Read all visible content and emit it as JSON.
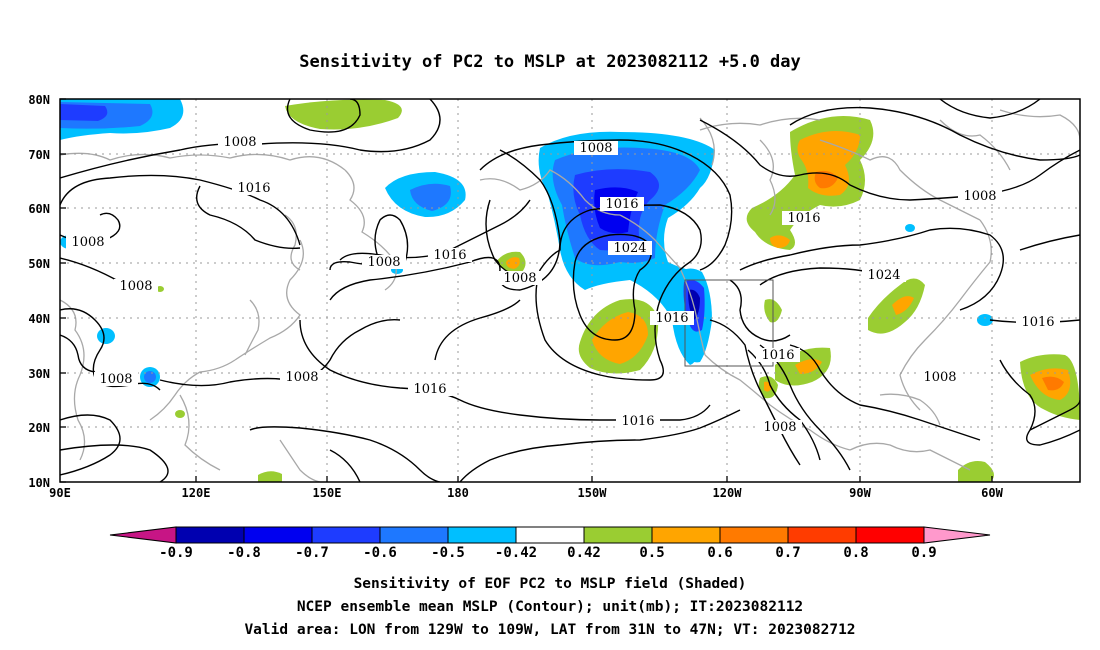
{
  "title": "Sensitivity of PC2 to MSLP at 2023082112 +5.0 day",
  "lat_labels": [
    "80N",
    "70N",
    "60N",
    "50N",
    "40N",
    "30N",
    "20N",
    "10N"
  ],
  "lon_labels": [
    "90E",
    "120E",
    "150E",
    "180",
    "150W",
    "120W",
    "90W",
    "60W"
  ],
  "colorbar": {
    "ticks": [
      "-0.9",
      "-0.8",
      "-0.7",
      "-0.6",
      "-0.5",
      "-0.42",
      "0.42",
      "0.5",
      "0.6",
      "0.7",
      "0.8",
      "0.9"
    ],
    "colors": [
      "#c71585",
      "#0000b0",
      "#0000f0",
      "#1e3cff",
      "#1e78ff",
      "#00bfff",
      "#ffffff",
      "#9acd32",
      "#ffa500",
      "#ff7a00",
      "#ff3c00",
      "#ff0000",
      "#ff99cc"
    ]
  },
  "contour_labels": [
    "1008",
    "1016",
    "1008",
    "1016",
    "1008",
    "1008",
    "1016",
    "1008",
    "1008",
    "1008",
    "1016",
    "1024",
    "1008",
    "1016",
    "1016",
    "1016",
    "1016",
    "1016",
    "1024",
    "1008",
    "1016",
    "1008",
    "1008"
  ],
  "captions": [
    "Sensitivity of EOF PC2 to MSLP field (Shaded)",
    "NCEP ensemble mean MSLP (Contour); unit(mb); IT:2023082112",
    "Valid area: LON from 129W to 109W, LAT from 31N to 47N; VT: 2023082712"
  ],
  "valid_area": {
    "lon_min": -129,
    "lon_max": -109,
    "lat_min": 31,
    "lat_max": 47
  }
}
